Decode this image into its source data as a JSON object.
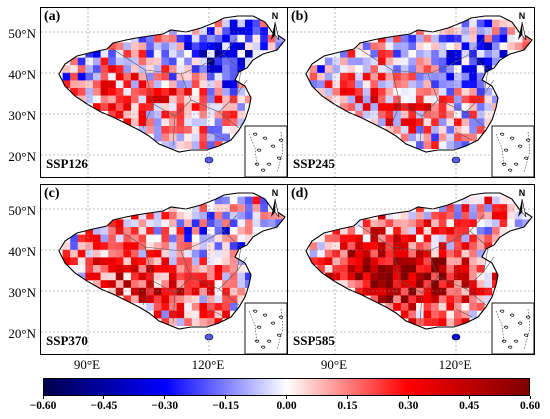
{
  "panels": [
    {
      "label": "(a)",
      "scenario": "SSP126"
    },
    {
      "label": "(b)",
      "scenario": "SSP245"
    },
    {
      "label": "(c)",
      "scenario": "SSP370"
    },
    {
      "label": "(d)",
      "scenario": "SSP585"
    }
  ],
  "lat_ticks": [
    "50°N",
    "40°N",
    "30°N",
    "20°N"
  ],
  "lon_ticks": [
    "90°E",
    "120°E"
  ],
  "north_arrow": "N",
  "colorbar": {
    "ticks": [
      "−0.60",
      "−0.45",
      "−0.30",
      "−0.15",
      "0.00",
      "0.15",
      "0.30",
      "0.45",
      "0.60"
    ],
    "range": [
      -0.6,
      0.6
    ],
    "colormap": "seismic",
    "colors": [
      "#00004c",
      "#0000ff",
      "#ffffff",
      "#ff0000",
      "#7f0000"
    ]
  },
  "colors": {
    "frame": "#000000",
    "grid": "#888888"
  }
}
